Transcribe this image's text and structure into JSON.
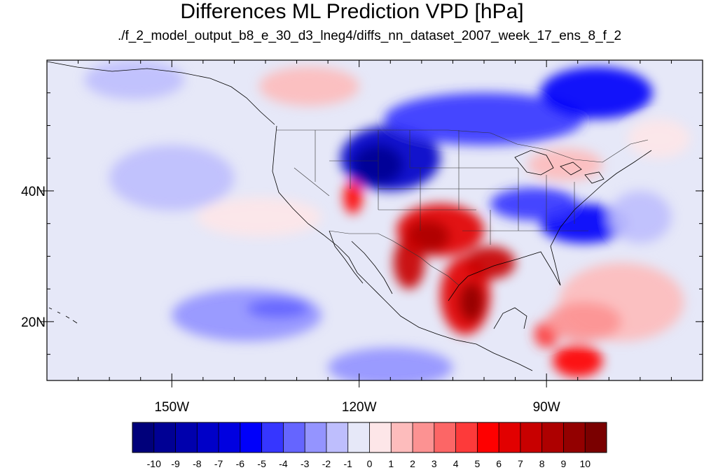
{
  "title": "Differences ML Prediction VPD [hPa]",
  "subtitle": "./f_2_model_output_b8_e_30_d3_lneg4/diffs_nn_dataset_2007_week_17_ens_8_f_2",
  "map": {
    "lon_range": [
      -170,
      -65
    ],
    "lat_range": [
      11,
      60
    ],
    "projection": "cylindrical-equidistant",
    "lon_ticks": [
      {
        "value": -150,
        "label": "150W"
      },
      {
        "value": -120,
        "label": "120W"
      },
      {
        "value": -90,
        "label": "90W"
      }
    ],
    "lat_ticks": [
      {
        "value": 40,
        "label": "40N"
      },
      {
        "value": 20,
        "label": "20N"
      }
    ],
    "background_color": "#e6e8f8"
  },
  "colorbar": {
    "levels": [
      "-10",
      "-9",
      "-8",
      "-7",
      "-6",
      "-5",
      "-4",
      "-3",
      "-2",
      "-1",
      "0",
      "1",
      "2",
      "3",
      "4",
      "5",
      "6",
      "7",
      "8",
      "9",
      "10"
    ],
    "colors": [
      "#00007a",
      "#000094",
      "#0000ad",
      "#0000c8",
      "#0000e0",
      "#0000fa",
      "#3636ff",
      "#6565ff",
      "#9494ff",
      "#bebefd",
      "#e6e8f8",
      "#fde6e8",
      "#fdbcbc",
      "#fc9292",
      "#fc6666",
      "#fd3a3a",
      "#fe0000",
      "#e20000",
      "#c80000",
      "#ad0000",
      "#930000",
      "#7a0000"
    ]
  },
  "regions": [
    {
      "name": "nw-us",
      "lon": -115,
      "lat": 45,
      "rlon": 8,
      "rlat": 5,
      "level": 3
    },
    {
      "name": "nw-us-core",
      "lon": -117,
      "lat": 44,
      "rlon": 4,
      "rlat": 3,
      "level": 1
    },
    {
      "name": "canada-band",
      "lon": -100,
      "lat": 51,
      "rlon": 16,
      "rlat": 4,
      "level": 6
    },
    {
      "name": "canada-east",
      "lon": -82,
      "lat": 55,
      "rlon": 9,
      "rlat": 4,
      "level": 5
    },
    {
      "name": "southeast-us",
      "lon": -84,
      "lat": 35,
      "rlon": 7,
      "rlat": 3,
      "level": 5
    },
    {
      "name": "midwest",
      "lon": -92,
      "lat": 38,
      "rlon": 7,
      "rlat": 2.5,
      "level": 6
    },
    {
      "name": "southwest-red",
      "lon": -107,
      "lat": 34,
      "rlon": 7,
      "rlat": 4,
      "level": 17
    },
    {
      "name": "sw-core",
      "lon": -109,
      "lat": 33,
      "rlon": 3.5,
      "rlat": 2.5,
      "level": 19
    },
    {
      "name": "baja",
      "lon": -112,
      "lat": 29,
      "rlon": 2.5,
      "rlat": 4,
      "level": 18
    },
    {
      "name": "mexico-red",
      "lon": -103,
      "lat": 24,
      "rlon": 4,
      "rlat": 6,
      "level": 17
    },
    {
      "name": "mexico-core",
      "lon": -102,
      "lat": 23,
      "rlon": 2,
      "rlat": 3,
      "level": 20
    },
    {
      "name": "gulf-coast",
      "lon": -99,
      "lat": 29,
      "rlon": 4,
      "rlat": 2.5,
      "level": 18
    },
    {
      "name": "california-red",
      "lon": -121,
      "lat": 39,
      "rlon": 1.5,
      "rlat": 2.5,
      "level": 16
    },
    {
      "name": "great-lakes-pink",
      "lon": -87,
      "lat": 44,
      "rlon": 6,
      "rlat": 2.5,
      "level": 12
    },
    {
      "name": "central-america",
      "lon": -85,
      "lat": 14,
      "rlon": 4,
      "rlat": 2.5,
      "level": 16
    },
    {
      "name": "guatemala-red",
      "lon": -90,
      "lat": 18,
      "rlon": 2,
      "rlat": 2,
      "level": 15
    },
    {
      "name": "atlantic-pink",
      "lon": -78,
      "lat": 23,
      "rlon": 10,
      "rlat": 6,
      "level": 12
    },
    {
      "name": "caribbean-pink",
      "lon": -84,
      "lat": 20,
      "rlon": 6,
      "rlat": 3,
      "level": 13
    },
    {
      "name": "pacific-band-blue",
      "lon": -138,
      "lat": 21,
      "rlon": 12,
      "rlat": 4,
      "level": 8
    },
    {
      "name": "pacific-band-core",
      "lon": -133,
      "lat": 22,
      "rlon": 5,
      "rlat": 1.5,
      "level": 7
    },
    {
      "name": "pacific-north-blue",
      "lon": -150,
      "lat": 42,
      "rlon": 10,
      "rlat": 5,
      "level": 9
    },
    {
      "name": "alaska-blue",
      "lon": -156,
      "lat": 57,
      "rlon": 8,
      "rlat": 3,
      "level": 9
    },
    {
      "name": "se-pacific-blue",
      "lon": -115,
      "lat": 13,
      "rlon": 10,
      "rlat": 3,
      "level": 8
    },
    {
      "name": "nw-pacific-pink",
      "lon": -136,
      "lat": 36,
      "rlon": 10,
      "rlat": 3,
      "level": 11
    },
    {
      "name": "north-pink",
      "lon": -128,
      "lat": 56,
      "rlon": 8,
      "rlat": 3,
      "level": 12
    },
    {
      "name": "east-canada-pink",
      "lon": -72,
      "lat": 48,
      "rlon": 5,
      "rlat": 3,
      "level": 11
    },
    {
      "name": "atlantic-blue",
      "lon": -75,
      "lat": 36,
      "rlon": 5,
      "rlat": 4,
      "level": 9
    }
  ]
}
